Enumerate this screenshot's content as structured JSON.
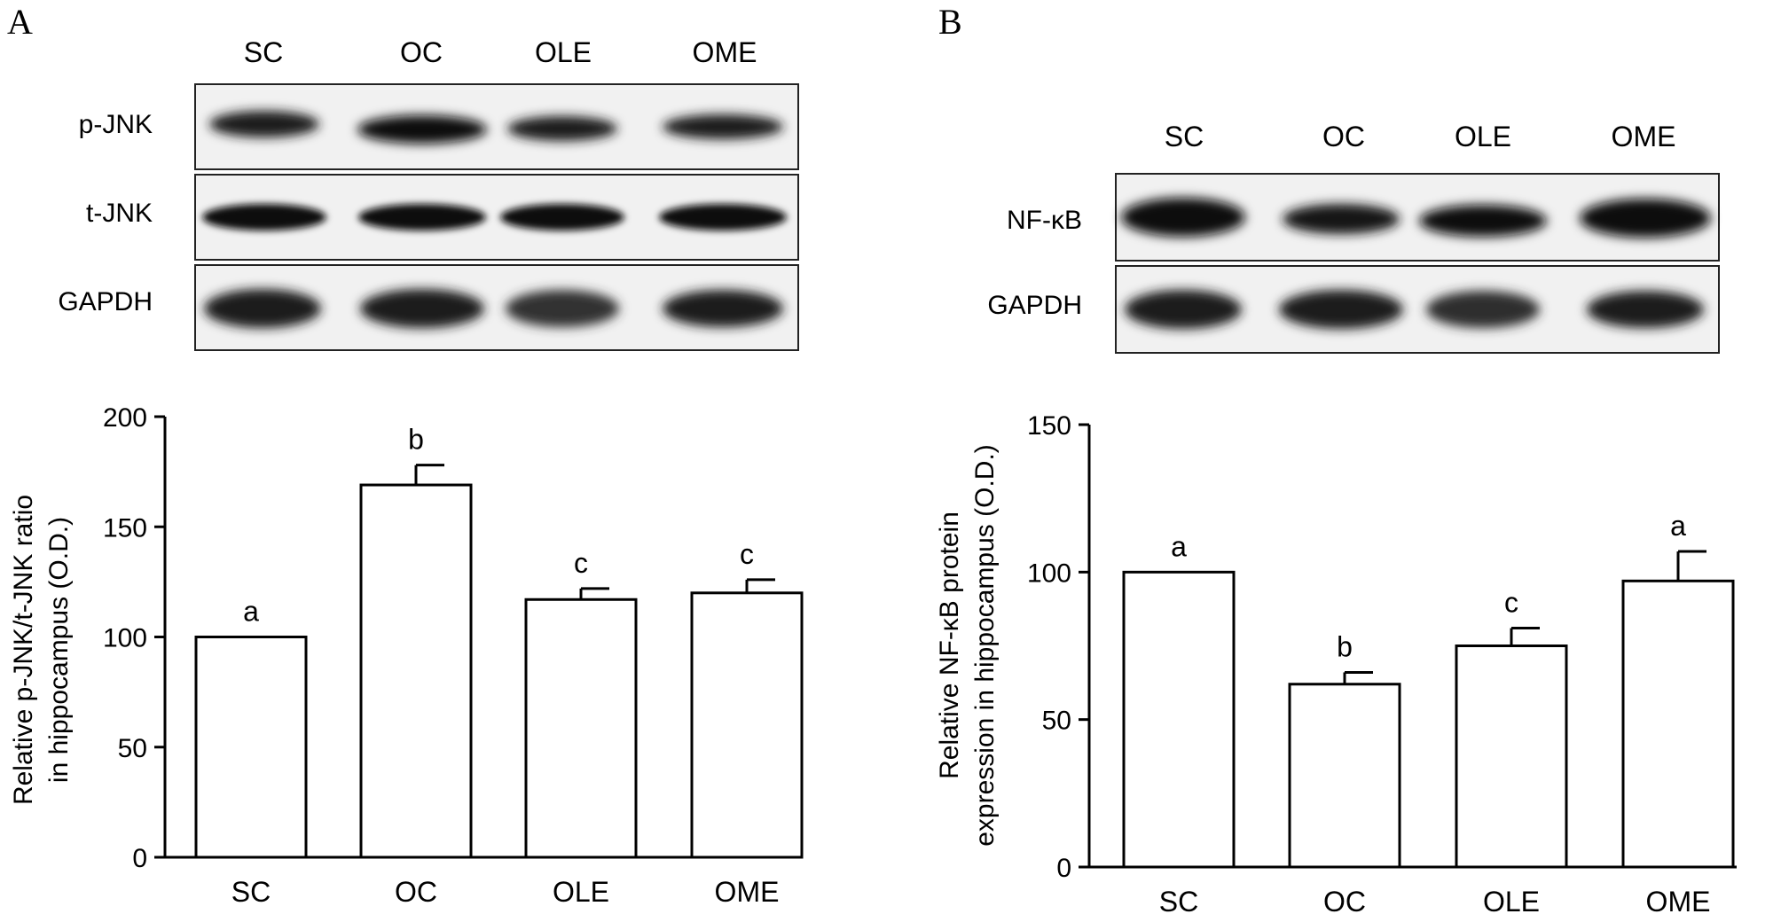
{
  "panel_a": {
    "letter": "A",
    "lanes": [
      "SC",
      "OC",
      "OLE",
      "OME"
    ],
    "blot_rows": [
      "p-JNK",
      "t-JNK",
      "GAPDH"
    ]
  },
  "panel_b": {
    "letter": "B",
    "lanes": [
      "SC",
      "OC",
      "OLE",
      "OME"
    ],
    "blot_rows": [
      "NF-κB",
      "GAPDH"
    ]
  },
  "chart_data": [
    {
      "type": "bar",
      "categories": [
        "SC",
        "OC",
        "OLE",
        "OME"
      ],
      "values": [
        100,
        169,
        117,
        120
      ],
      "errors": [
        0,
        9,
        5,
        6
      ],
      "annotations": [
        "a",
        "b",
        "c",
        "c"
      ],
      "ylabel_lines": [
        "Relative p-JNK/t-JNK ratio",
        "in hippocampus (O.D.)"
      ],
      "ylim": [
        0,
        200
      ],
      "yticks": [
        0,
        50,
        100,
        150,
        200
      ],
      "grid": false
    },
    {
      "type": "bar",
      "categories": [
        "SC",
        "OC",
        "OLE",
        "OME"
      ],
      "values": [
        100,
        62,
        75,
        97
      ],
      "errors": [
        0,
        4,
        6,
        10
      ],
      "annotations": [
        "a",
        "b",
        "c",
        "a"
      ],
      "ylabel_lines": [
        "Relative NF-κB protein",
        "expression in hippocampus (O.D.)"
      ],
      "ylim": [
        0,
        150
      ],
      "yticks": [
        0,
        50,
        100,
        150
      ],
      "grid": false
    }
  ]
}
